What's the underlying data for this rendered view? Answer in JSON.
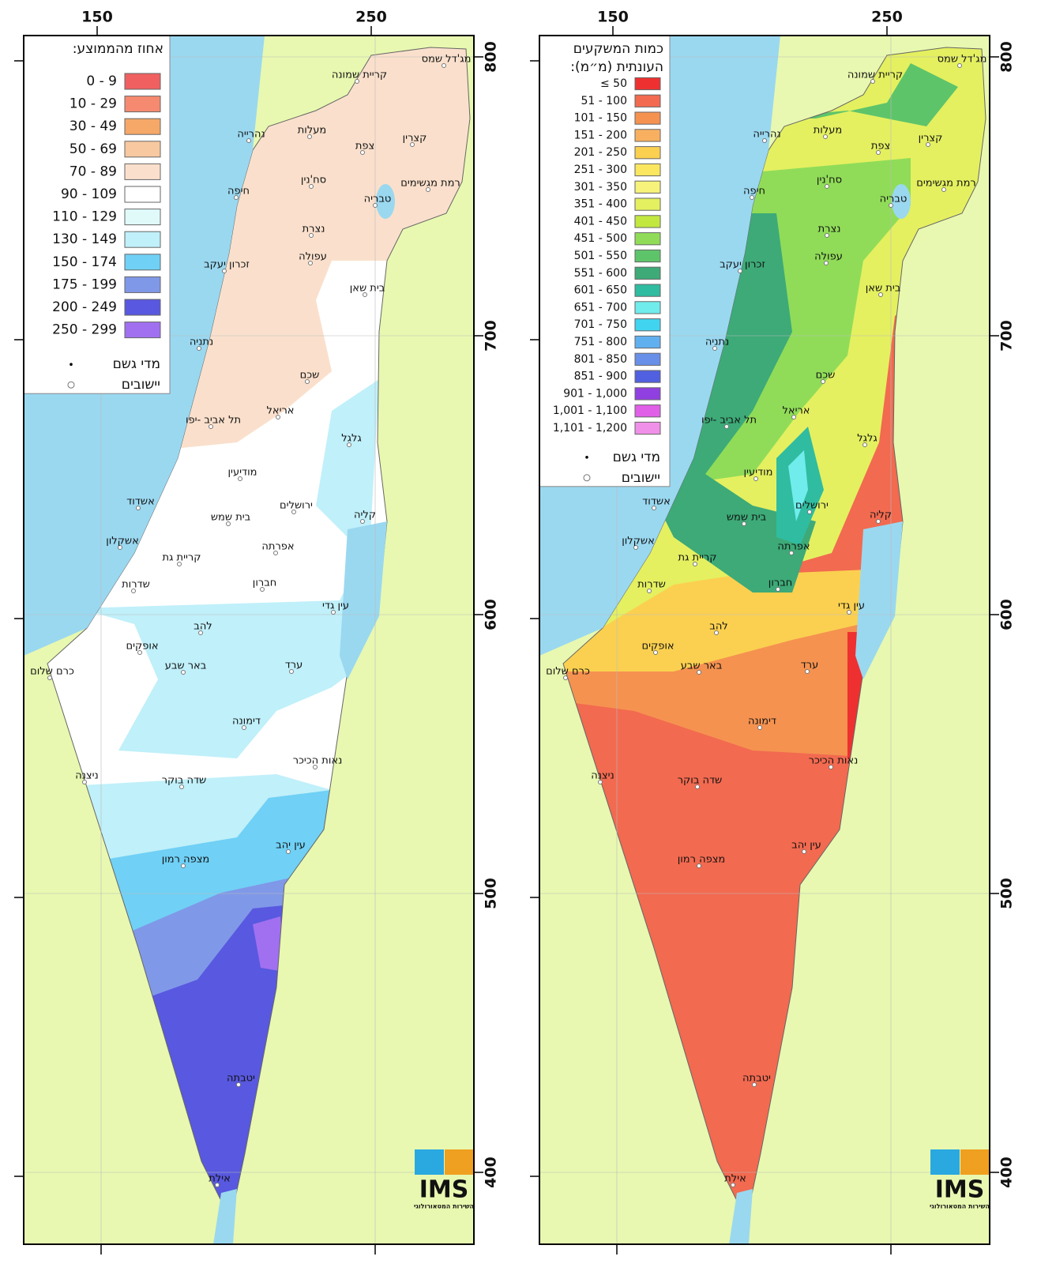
{
  "x_ticks": [
    150,
    250
  ],
  "y_ticks": [
    800,
    700,
    600,
    500,
    400
  ],
  "maps": [
    {
      "legend_title": [
        "אחוז מהממוצע:"
      ],
      "legend": [
        {
          "label": "0 - 9",
          "color": "#f06060"
        },
        {
          "label": "10 - 29",
          "color": "#f58a70"
        },
        {
          "label": "30 - 49",
          "color": "#f6a868"
        },
        {
          "label": "50 - 69",
          "color": "#f8c8a0"
        },
        {
          "label": "70 - 89",
          "color": "#fae0cc"
        },
        {
          "label": "90 - 109",
          "color": "#ffffff"
        },
        {
          "label": "110 - 129",
          "color": "#e0fafa"
        },
        {
          "label": "130 - 149",
          "color": "#c0f0fa"
        },
        {
          "label": "150 - 174",
          "color": "#70d0f5"
        },
        {
          "label": "175 - 199",
          "color": "#8098e8"
        },
        {
          "label": "200 - 249",
          "color": "#5858e0"
        },
        {
          "label": "250 - 299",
          "color": "#a070f0"
        }
      ],
      "symbols": [
        "מדי גשם",
        "יישובים"
      ]
    },
    {
      "legend_title": [
        "כמות המשקעים",
        "העונתית (מ״מ):"
      ],
      "legend": [
        {
          "label": "≤ 50",
          "color": "#ee3030"
        },
        {
          "label": "51 - 100",
          "color": "#f26a50"
        },
        {
          "label": "101 - 150",
          "color": "#f59250"
        },
        {
          "label": "151 - 200",
          "color": "#f8b060"
        },
        {
          "label": "201 - 250",
          "color": "#fbd050"
        },
        {
          "label": "251 - 300",
          "color": "#fbe660"
        },
        {
          "label": "301 - 350",
          "color": "#f7f37a"
        },
        {
          "label": "351 - 400",
          "color": "#e4f060"
        },
        {
          "label": "401 - 450",
          "color": "#c2e840"
        },
        {
          "label": "451 - 500",
          "color": "#90dc58"
        },
        {
          "label": "501 - 550",
          "color": "#5ec46a"
        },
        {
          "label": "551 - 600",
          "color": "#3daa78"
        },
        {
          "label": "601 - 650",
          "color": "#30bca0"
        },
        {
          "label": "651 - 700",
          "color": "#70ecec"
        },
        {
          "label": "701 - 750",
          "color": "#40d4f0"
        },
        {
          "label": "751 - 800",
          "color": "#60b0f0"
        },
        {
          "label": "801 - 850",
          "color": "#6890e8"
        },
        {
          "label": "851 - 900",
          "color": "#5060e0"
        },
        {
          "label": "901 - 1,000",
          "color": "#9040e0"
        },
        {
          "label": "1,001 - 1,100",
          "color": "#e060e8"
        },
        {
          "label": "1,101 - 1,200",
          "color": "#f090e8"
        }
      ],
      "symbols": [
        "מדי גשם",
        "יישובים"
      ]
    }
  ],
  "cities": [
    "מג'דל שמס",
    "קריית שמונה",
    "נהרייה",
    "מעלות",
    "צפת",
    "קצרין",
    "סח'נין",
    "רמת מגשימים",
    "חיפה",
    "טבריה",
    "נצרת",
    "עפולה",
    "זכרון יעקב",
    "בית שאן",
    "נתניה",
    "שכם",
    "אריאל",
    "תל אביב -יפו",
    "גלגל",
    "מודיעין",
    "אשדוד",
    "ירושלים",
    "בית שמש",
    "קליה",
    "אשקלון",
    "אפרתה",
    "קריית גת",
    "שדרות",
    "חברון",
    "עין גדי",
    "להב",
    "אופקים",
    "באר שבע",
    "ערד",
    "כרם שלום",
    "דימונה",
    "נאות הכיכר",
    "ניצנה",
    "שדה בוקר",
    "עין יהב",
    "מצפה רמון",
    "יטבתה",
    "אילת"
  ],
  "logo": "IMS",
  "logo_sub": "השירות המטאורולוגי"
}
